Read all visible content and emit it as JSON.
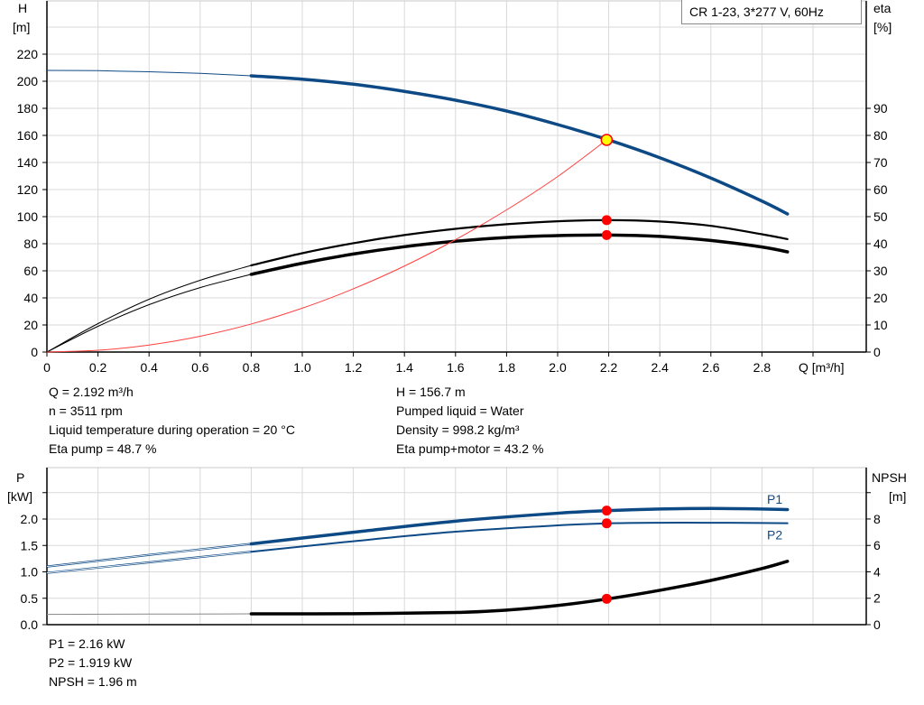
{
  "colors": {
    "head": "#0d4a85",
    "eta": "#000000",
    "system": "#ff4040",
    "marker": "#ff0000",
    "op_marker": "#ffff00",
    "power": "#0d4a85",
    "npsh": "#000000",
    "grid": "#d9d9d9"
  },
  "chart_data": [
    {
      "type": "line",
      "title": "CR 1-23, 3*277 V, 60Hz",
      "xlabel": "Q [m³/h]",
      "ylabel_left": [
        "H",
        "[m]"
      ],
      "ylabel_right": [
        "eta",
        "[%]"
      ],
      "xlim": [
        0,
        3.0
      ],
      "ylim_left": [
        0,
        240
      ],
      "ylim_right": [
        0,
        110
      ],
      "x_ticks": [
        "0",
        "0.2",
        "0.4",
        "0.6",
        "0.8",
        "1.0",
        "1.2",
        "1.4",
        "1.6",
        "1.8",
        "2.0",
        "2.2",
        "2.4",
        "2.6",
        "2.8"
      ],
      "y_ticks_left": [
        "0",
        "20",
        "40",
        "60",
        "80",
        "100",
        "120",
        "140",
        "160",
        "180",
        "200",
        "220"
      ],
      "y_ticks_right": [
        "0",
        "10",
        "20",
        "30",
        "40",
        "50",
        "60",
        "70",
        "80",
        "90"
      ],
      "grid": true,
      "operating_point_q": 2.192,
      "series": [
        {
          "key": "H",
          "axis": "left",
          "color": "#0d4a85",
          "x": [
            0,
            0.2,
            0.4,
            0.6,
            0.8,
            1.0,
            1.2,
            1.4,
            1.6,
            1.8,
            2.0,
            2.2,
            2.4,
            2.6,
            2.8,
            2.9
          ],
          "y": [
            208,
            207.8,
            207,
            205.8,
            204,
            201.5,
            197.8,
            192.5,
            186,
            178,
            168,
            156.6,
            143.5,
            128.5,
            111.5,
            102
          ],
          "thick_from": 0.8
        },
        {
          "key": "eta_pump",
          "axis": "right",
          "color": "#000000",
          "x": [
            0,
            0.2,
            0.4,
            0.6,
            0.8,
            1.0,
            1.2,
            1.4,
            1.6,
            1.8,
            2.0,
            2.2,
            2.4,
            2.6,
            2.8,
            2.9
          ],
          "y": [
            0,
            10.5,
            19.5,
            26.5,
            32,
            36.5,
            40.2,
            43.2,
            45.5,
            47.2,
            48.3,
            48.7,
            48.2,
            46.6,
            43.5,
            41.7
          ],
          "thick_from": 0.8
        },
        {
          "key": "eta_pump_motor",
          "axis": "right",
          "color": "#000000",
          "x": [
            0,
            0.2,
            0.4,
            0.6,
            0.8,
            1.0,
            1.2,
            1.4,
            1.6,
            1.8,
            2.0,
            2.2,
            2.4,
            2.6,
            2.8,
            2.9
          ],
          "y": [
            0,
            9.5,
            17.5,
            23.8,
            28.7,
            32.8,
            36.2,
            38.9,
            40.9,
            42.3,
            43.0,
            43.2,
            42.7,
            41.2,
            38.8,
            37
          ],
          "thick_from": 0.8
        },
        {
          "key": "system",
          "axis": "left",
          "color": "#ff4040",
          "x": [
            0,
            0.2,
            0.4,
            0.6,
            0.8,
            1.0,
            1.2,
            1.4,
            1.6,
            1.8,
            2.0,
            2.192
          ],
          "y": [
            0,
            1.3,
            5.2,
            11.7,
            20.7,
            32.4,
            46.7,
            63.5,
            83,
            105,
            129.6,
            156.7
          ]
        }
      ],
      "markers": [
        {
          "series": "H",
          "x": 2.192,
          "y": 156.7,
          "style": "operating"
        },
        {
          "series": "eta_pump",
          "x": 2.192,
          "y": 48.7
        },
        {
          "series": "eta_pump_motor",
          "x": 2.192,
          "y": 43.2
        }
      ]
    },
    {
      "type": "line",
      "xlim": [
        0,
        3.0
      ],
      "ylabel_left": [
        "P",
        "[kW]"
      ],
      "ylabel_right": [
        "NPSH",
        "[m]"
      ],
      "ylim_left": [
        0,
        2.5
      ],
      "ylim_right": [
        0,
        10
      ],
      "y_ticks_left": [
        "0.0",
        "0.5",
        "1.0",
        "1.5",
        "2.0"
      ],
      "y_ticks_right": [
        "0",
        "2",
        "4",
        "6",
        "8"
      ],
      "grid": true,
      "series": [
        {
          "key": "P1",
          "name": "P1",
          "axis": "left",
          "color": "#0d4a85",
          "x": [
            0,
            0.4,
            0.8,
            1.2,
            1.6,
            2.0,
            2.2,
            2.4,
            2.6,
            2.8,
            2.9
          ],
          "y": [
            1.1,
            1.32,
            1.53,
            1.75,
            1.96,
            2.11,
            2.16,
            2.19,
            2.2,
            2.19,
            2.18
          ],
          "thick_from": 0.8
        },
        {
          "key": "P2",
          "name": "P2",
          "axis": "left",
          "color": "#0d4a85",
          "x": [
            0,
            0.4,
            0.8,
            1.2,
            1.6,
            2.0,
            2.2,
            2.4,
            2.6,
            2.8,
            2.9
          ],
          "y": [
            0.98,
            1.18,
            1.38,
            1.58,
            1.76,
            1.88,
            1.919,
            1.93,
            1.93,
            1.925,
            1.92
          ],
          "thick_from": 0.8,
          "thin": true
        },
        {
          "key": "NPSH",
          "axis": "right",
          "color": "#000000",
          "x": [
            0,
            0.4,
            0.8,
            1.2,
            1.6,
            1.8,
            2.0,
            2.2,
            2.4,
            2.6,
            2.8,
            2.9
          ],
          "y": [
            0.78,
            0.8,
            0.82,
            0.83,
            0.92,
            1.1,
            1.45,
            1.96,
            2.6,
            3.35,
            4.25,
            4.8
          ],
          "thick_from": 0.8
        }
      ],
      "markers": [
        {
          "series": "P1",
          "x": 2.192,
          "y": 2.16
        },
        {
          "series": "P2",
          "x": 2.192,
          "y": 1.919
        },
        {
          "series": "NPSH",
          "x": 2.192,
          "y": 1.96
        }
      ]
    }
  ],
  "info_top_left": [
    "Q = 2.192 m³/h",
    "n = 3511 rpm",
    "Liquid temperature during operation = 20 °C",
    "Eta pump = 48.7 %"
  ],
  "info_top_right": [
    "H = 156.7 m",
    "Pumped liquid = Water",
    "Density = 998.2 kg/m³",
    "Eta pump+motor = 43.2 %"
  ],
  "info_bottom": [
    "P1 = 2.16 kW",
    "P2 = 1.919 kW",
    "NPSH = 1.96 m"
  ]
}
